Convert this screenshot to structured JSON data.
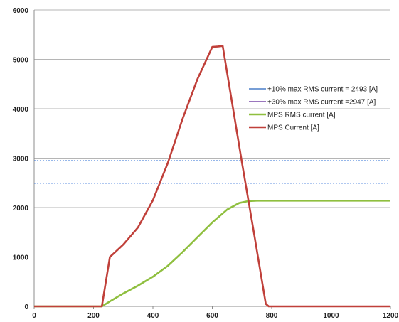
{
  "chart_data": {
    "type": "line",
    "title": "",
    "xlabel": "",
    "ylabel": "",
    "xlim": [
      0,
      1200
    ],
    "ylim": [
      0,
      6000
    ],
    "x_ticks": [
      "0",
      "200",
      "400",
      "600",
      "800",
      "1000",
      "1200"
    ],
    "y_ticks": [
      "0",
      "1000",
      "2000",
      "3000",
      "4000",
      "5000",
      "6000"
    ],
    "grid": "horizontal",
    "legend_placement": "right",
    "series": [
      {
        "name": "+10% max  RMS current = 2493 [A]",
        "style": "dotted",
        "color": "#2e6fd6",
        "legend_color": "#4a7ec8",
        "x": [
          0,
          1200
        ],
        "y": [
          2493,
          2493
        ]
      },
      {
        "name": "+30% max  RMS current =2947 [A]",
        "style": "dotted",
        "color": "#2e6fd6",
        "legend_color": "#7a4aa8",
        "x": [
          0,
          1200
        ],
        "y": [
          2947,
          2947
        ]
      },
      {
        "name": "MPS RMS current [A]",
        "style": "solid",
        "color": "#8fbf3f",
        "legend_color": "#8fbf3f",
        "x": [
          0,
          228,
          260,
          300,
          350,
          400,
          450,
          500,
          550,
          600,
          650,
          690,
          720,
          750,
          800,
          900,
          1000,
          1100,
          1200
        ],
        "y": [
          0,
          0,
          120,
          260,
          420,
          600,
          820,
          1100,
          1400,
          1700,
          1960,
          2090,
          2130,
          2140,
          2140,
          2140,
          2140,
          2140,
          2140
        ]
      },
      {
        "name": "MPS Current [A]",
        "style": "solid",
        "color": "#c0403a",
        "legend_color": "#c0403a",
        "x": [
          0,
          228,
          255,
          270,
          300,
          350,
          400,
          450,
          500,
          550,
          600,
          620,
          635,
          700,
          740,
          780,
          790,
          800,
          1200
        ],
        "y": [
          0,
          0,
          1000,
          1080,
          1250,
          1600,
          2150,
          2900,
          3800,
          4600,
          5250,
          5260,
          5270,
          2900,
          1500,
          50,
          0,
          0,
          0
        ]
      }
    ]
  }
}
